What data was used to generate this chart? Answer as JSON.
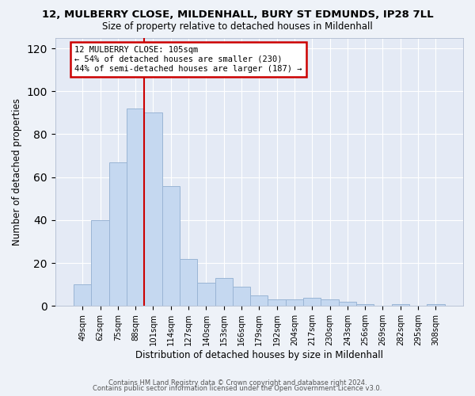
{
  "title1": "12, MULBERRY CLOSE, MILDENHALL, BURY ST EDMUNDS, IP28 7LL",
  "title2": "Size of property relative to detached houses in Mildenhall",
  "xlabel": "Distribution of detached houses by size in Mildenhall",
  "ylabel": "Number of detached properties",
  "categories": [
    "49sqm",
    "62sqm",
    "75sqm",
    "88sqm",
    "101sqm",
    "114sqm",
    "127sqm",
    "140sqm",
    "153sqm",
    "166sqm",
    "179sqm",
    "192sqm",
    "204sqm",
    "217sqm",
    "230sqm",
    "243sqm",
    "256sqm",
    "269sqm",
    "282sqm",
    "295sqm",
    "308sqm"
  ],
  "values": [
    10,
    40,
    67,
    92,
    90,
    56,
    22,
    11,
    13,
    9,
    5,
    3,
    3,
    4,
    3,
    2,
    1,
    0,
    1,
    0,
    1
  ],
  "bar_color": "#c5d8f0",
  "bar_edge_color": "#9ab5d5",
  "vline_x": 3.5,
  "vline_color": "#cc0000",
  "annotation_line1": "12 MULBERRY CLOSE: 105sqm",
  "annotation_line2": "← 54% of detached houses are smaller (230)",
  "annotation_line3": "44% of semi-detached houses are larger (187) →",
  "annotation_box_color": "#cc0000",
  "ylim": [
    0,
    125
  ],
  "yticks": [
    0,
    20,
    40,
    60,
    80,
    100,
    120
  ],
  "footer1": "Contains HM Land Registry data © Crown copyright and database right 2024.",
  "footer2": "Contains public sector information licensed under the Open Government Licence v3.0.",
  "bg_color": "#eef2f8",
  "plot_bg_color": "#e4eaf5"
}
